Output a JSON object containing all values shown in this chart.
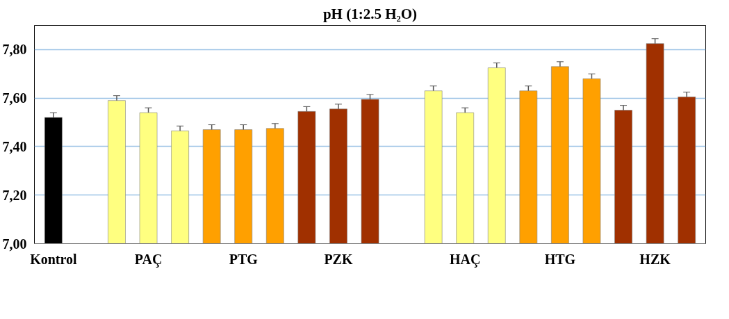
{
  "chart_data": {
    "type": "bar",
    "title": "pH (1:2.5 H₂O)",
    "categories": [
      "Kontrol",
      null,
      null,
      "PAÇ",
      null,
      null,
      "PTG",
      null,
      null,
      "PZK",
      null,
      null,
      null,
      "HAÇ",
      null,
      null,
      "HTG",
      null,
      null,
      "HZK",
      null
    ],
    "values": [
      7.52,
      null,
      7.59,
      7.54,
      7.465,
      7.47,
      7.47,
      7.475,
      7.545,
      7.555,
      7.595,
      null,
      7.63,
      7.54,
      7.725,
      7.63,
      7.73,
      7.68,
      7.55,
      7.825,
      7.605
    ],
    "errors": [
      0.02,
      null,
      0.02,
      0.02,
      0.02,
      0.02,
      0.02,
      0.02,
      0.02,
      0.02,
      0.02,
      null,
      0.02,
      0.02,
      0.02,
      0.02,
      0.02,
      0.02,
      0.02,
      0.02,
      0.02
    ],
    "colors": [
      "#000000",
      "#ffffff",
      "#ffff80",
      "#ffff80",
      "#ffff80",
      "#ffa000",
      "#ffa000",
      "#ffa000",
      "#a03000",
      "#a03000",
      "#a03000",
      "#ffffff",
      "#ffff80",
      "#ffff80",
      "#ffff80",
      "#ffa000",
      "#ffa000",
      "#ffa000",
      "#a03000",
      "#a03000",
      "#a03000"
    ],
    "ylim": [
      7.0,
      7.9
    ],
    "yticks": [
      {
        "value": 7.0,
        "label": "7,00"
      },
      {
        "value": 7.2,
        "label": "7,20"
      },
      {
        "value": 7.4,
        "label": "7,40"
      },
      {
        "value": 7.6,
        "label": "7,60"
      },
      {
        "value": 7.8,
        "label": "7,80"
      }
    ],
    "grid": "y"
  }
}
